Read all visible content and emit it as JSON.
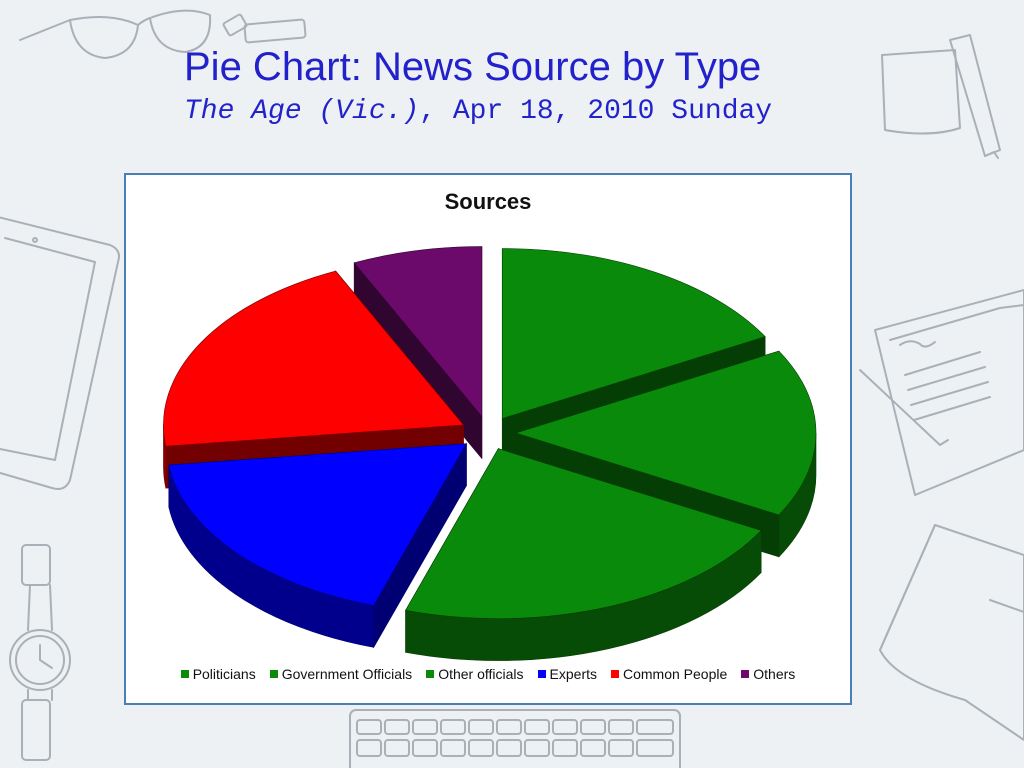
{
  "slide": {
    "title": "Pie Chart: News Source by Type",
    "subtitle_publication": "The Age (Vic.)",
    "subtitle_date": ", Apr 18, 2010 Sunday"
  },
  "chart_data": {
    "type": "pie",
    "title": "Sources",
    "style": "3d-exploded",
    "legend_position": "bottom",
    "categories": [
      "Politicians",
      "Government Officials",
      "Other officials",
      "Experts",
      "Common People",
      "Others"
    ],
    "values": [
      17,
      16,
      22,
      18,
      20,
      7
    ],
    "colors": [
      "#0a8a0a",
      "#0a8a0a",
      "#0a8a0a",
      "#0000ff",
      "#ff0000",
      "#6b0a6b"
    ]
  }
}
